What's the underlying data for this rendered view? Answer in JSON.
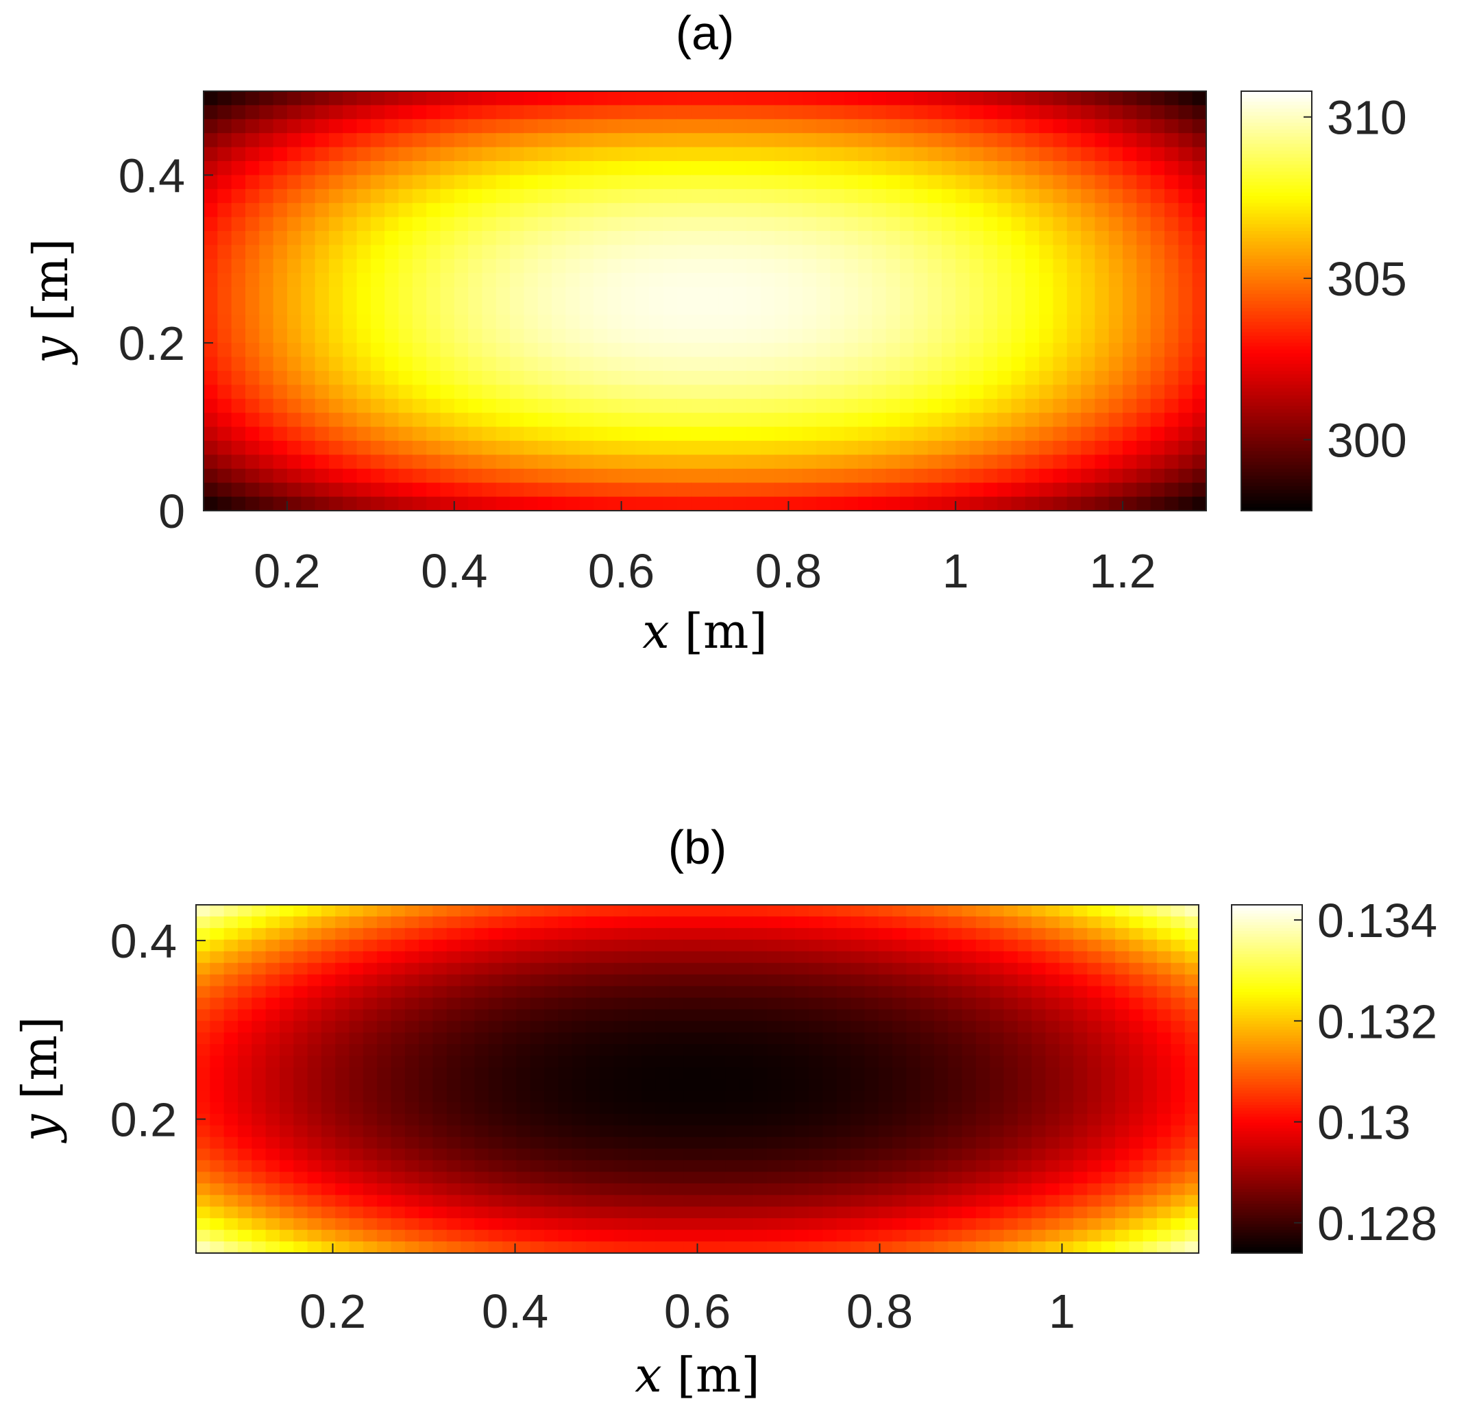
{
  "chart_data": [
    {
      "id": "a",
      "type": "heatmap",
      "title": "(a)",
      "xlabel": {
        "var": "x",
        "unit": "[m]"
      },
      "ylabel": {
        "var": "y",
        "unit": "[m]"
      },
      "xlim": [
        0.1,
        1.3
      ],
      "ylim": [
        0,
        0.5
      ],
      "xticks": [
        0.2,
        0.4,
        0.6,
        0.8,
        1,
        1.2
      ],
      "xtick_labels": [
        "0.2",
        "0.4",
        "0.6",
        "0.8",
        "1",
        "1.2"
      ],
      "yticks": [
        0,
        0.2,
        0.4
      ],
      "ytick_labels": [
        "0",
        "0.2",
        "0.4"
      ],
      "colormap": "hot",
      "clim": [
        297.8,
        310.8
      ],
      "cticks": [
        300,
        305,
        310
      ],
      "ctick_labels": [
        "300",
        "305",
        "310"
      ],
      "field": {
        "shape": "peak",
        "center": [
          0.7,
          0.25
        ],
        "center_value": 310.5,
        "corner_value": 297.8,
        "edge_mid_x_value": 303.5,
        "edge_mid_y_value": 302.5
      }
    },
    {
      "id": "b",
      "type": "heatmap",
      "title": "(b)",
      "xlabel": {
        "var": "x",
        "unit": "[m]"
      },
      "ylabel": {
        "var": "y",
        "unit": "[m]"
      },
      "xlim": [
        0.05,
        1.15
      ],
      "ylim": [
        0.05,
        0.44
      ],
      "xticks": [
        0.2,
        0.4,
        0.6,
        0.8,
        1
      ],
      "xtick_labels": [
        "0.2",
        "0.4",
        "0.6",
        "0.8",
        "1"
      ],
      "yticks": [
        0.2,
        0.4
      ],
      "ytick_labels": [
        "0.2",
        "0.4"
      ],
      "colormap": "hot",
      "clim": [
        0.1274,
        0.1343
      ],
      "cticks": [
        0.128,
        0.13,
        0.132,
        0.134
      ],
      "ctick_labels": [
        "0.128",
        "0.13",
        "0.132",
        "0.134"
      ],
      "field": {
        "shape": "trough",
        "center": [
          0.6,
          0.24
        ],
        "center_value": 0.1275,
        "corner_value": 0.1342,
        "edge_mid_x_value": 0.1302,
        "edge_mid_y_value": 0.1305
      }
    }
  ],
  "colors": {
    "background": "#ffffff",
    "axis_line": "#262626",
    "tick_text": "#262626"
  }
}
